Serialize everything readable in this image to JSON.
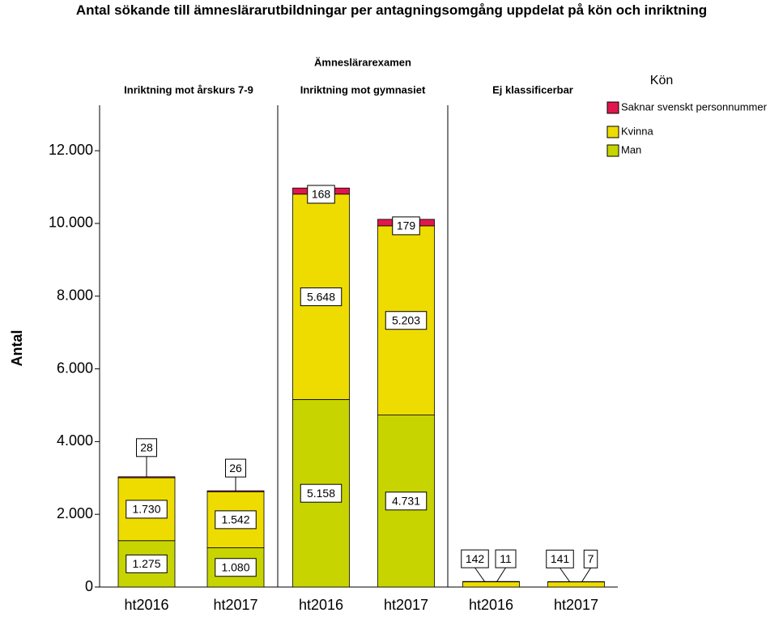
{
  "chart_data": {
    "type": "bar",
    "stacked": true,
    "title": "Antal sökande till ämneslärarutbildningar per antagningsomgång uppdelat på kön och inriktning",
    "facet_title": "Ämneslärarexamen",
    "ylabel": "Antal",
    "legend_title": "Kön",
    "ylim": [
      0,
      13250
    ],
    "yticks": [
      {
        "value": 0,
        "label": "0"
      },
      {
        "value": 2000,
        "label": "2.000"
      },
      {
        "value": 4000,
        "label": "4.000"
      },
      {
        "value": 6000,
        "label": "6.000"
      },
      {
        "value": 8000,
        "label": "8.000"
      },
      {
        "value": 10000,
        "label": "10.000"
      },
      {
        "value": 12000,
        "label": "12.000"
      }
    ],
    "panels": [
      {
        "title": "Inriktning mot årskurs 7-9",
        "categories": [
          "ht2016",
          "ht2017"
        ]
      },
      {
        "title": "Inriktning mot gymnasiet",
        "categories": [
          "ht2016",
          "ht2017"
        ]
      },
      {
        "title": "Ej klassificerbar",
        "categories": [
          "ht2016",
          "ht2017"
        ]
      }
    ],
    "series": [
      {
        "name": "Man",
        "color": "#c8d400",
        "values": [
          [
            1275,
            1080
          ],
          [
            5158,
            4731
          ],
          [
            null,
            null
          ]
        ],
        "value_labels": [
          [
            "1.275",
            "1.080"
          ],
          [
            "5.158",
            "4.731"
          ],
          [
            null,
            null
          ]
        ]
      },
      {
        "name": "Kvinna",
        "color": "#eedc00",
        "values": [
          [
            1730,
            1542
          ],
          [
            5648,
            5203
          ],
          [
            142,
            141
          ]
        ],
        "value_labels": [
          [
            "1.730",
            "1.542"
          ],
          [
            "5.648",
            "5.203"
          ],
          [
            "142",
            "141"
          ]
        ]
      },
      {
        "name": "Saknar svenskt personnummer",
        "color": "#e0174c",
        "values": [
          [
            28,
            26
          ],
          [
            168,
            179
          ],
          [
            11,
            7
          ]
        ],
        "value_labels": [
          [
            "28",
            "26"
          ],
          [
            "168",
            "179"
          ],
          [
            "11",
            "7"
          ]
        ]
      }
    ]
  }
}
